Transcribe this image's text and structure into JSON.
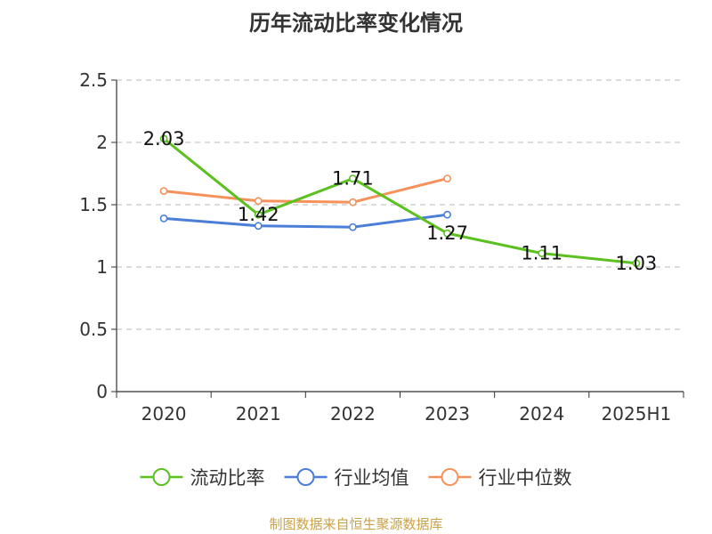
{
  "chart_data": {
    "type": "line",
    "title": "历年流动比率变化情况",
    "xlabel": "",
    "ylabel": "",
    "categories": [
      "2020",
      "2021",
      "2022",
      "2023",
      "2024",
      "2025H1"
    ],
    "ylim": [
      0,
      2.5
    ],
    "yticks": [
      "0",
      "0.5",
      "1",
      "1.5",
      "2",
      "2.5"
    ],
    "grid": true,
    "legend_position": "bottom",
    "series": [
      {
        "name": "流动比率",
        "color": "#5cc020",
        "values": [
          2.03,
          1.42,
          1.71,
          1.27,
          1.11,
          1.03
        ],
        "labels": [
          "2.03",
          "1.42",
          "1.71",
          "1.27",
          "1.11",
          "1.03"
        ],
        "show_labels": true
      },
      {
        "name": "行业均值",
        "color": "#4a7ed8",
        "values": [
          1.39,
          1.33,
          1.32,
          1.42,
          null,
          null
        ],
        "show_labels": false
      },
      {
        "name": "行业中位数",
        "color": "#f5915a",
        "values": [
          1.61,
          1.53,
          1.52,
          1.71,
          null,
          null
        ],
        "show_labels": false
      }
    ]
  },
  "source_note": "制图数据来自恒生聚源数据库"
}
